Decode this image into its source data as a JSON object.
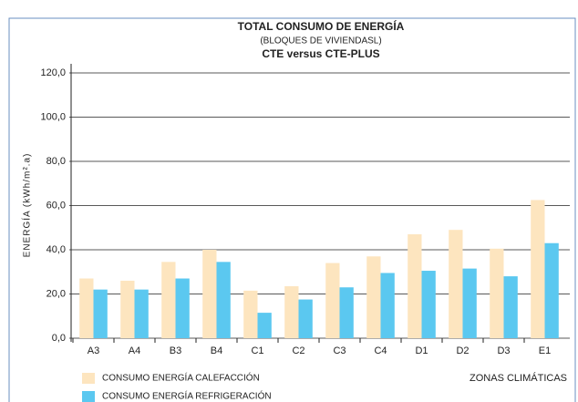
{
  "chart_data": {
    "type": "bar",
    "title": "TOTAL CONSUMO DE ENERGÍA",
    "subtitle": "(BLOQUES DE VIVIENDASL)",
    "title2": "CTE versus CTE-PLUS",
    "y_label": "ENERGÍA (kWh/m².a)",
    "x_label": "ZONAS CLIMÁTICAS",
    "categories": [
      "A3",
      "A4",
      "B3",
      "B4",
      "C1",
      "C2",
      "C3",
      "C4",
      "D1",
      "D2",
      "D3",
      "E1"
    ],
    "series": [
      {
        "name": "CONSUMO ENERGÍA CALEFACCIÓN",
        "color": "#fde5bf",
        "values": [
          27,
          26,
          34.5,
          40,
          21.5,
          23.5,
          34,
          37,
          47,
          49,
          40.5,
          62.5
        ]
      },
      {
        "name": "CONSUMO ENERGÍA REFRIGERACIÓN",
        "color": "#5bc8f0",
        "values": [
          22,
          22,
          27,
          34.5,
          11.5,
          17.5,
          23,
          29.5,
          30.5,
          31.5,
          28,
          43
        ]
      }
    ],
    "ylim": [
      0,
      120
    ],
    "yticks": [
      {
        "value": 0,
        "label": "0,0"
      },
      {
        "value": 20,
        "label": "20,0"
      },
      {
        "value": 40,
        "label": "40,0"
      },
      {
        "value": 60,
        "label": "60,0"
      },
      {
        "value": 80,
        "label": "80,0"
      },
      {
        "value": 100,
        "label": "100,0"
      },
      {
        "value": 120,
        "label": "120,0"
      }
    ],
    "grid": true
  }
}
